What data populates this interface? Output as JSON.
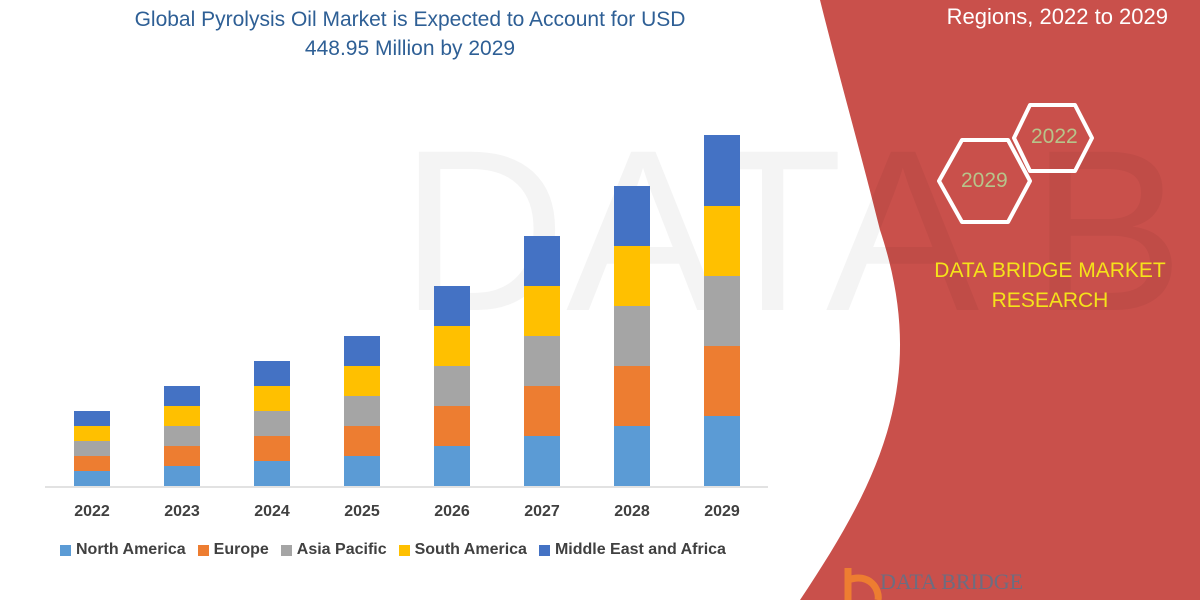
{
  "title": "Global Pyrolysis Oil Market is Expected to Account for USD 448.95 Million by 2029",
  "title_line1": "Global Pyrolysis Oil Market is Expected to Account for USD",
  "title_line2": "448.95 Million by 2029",
  "right_panel": {
    "subtitle": "Regions, 2022 to 2029",
    "hex_1": "2022",
    "hex_2": "2029",
    "brand_line1": "DATA BRIDGE MARKET",
    "brand_line2": "RESEARCH",
    "logo_text": "DATA BRIDGE",
    "panel_color": "#c9504b",
    "brand_color": "#f5e21a"
  },
  "chart_data": {
    "type": "bar",
    "stacked": true,
    "categories": [
      "2022",
      "2023",
      "2024",
      "2025",
      "2026",
      "2027",
      "2028",
      "2029"
    ],
    "series": [
      {
        "name": "North America",
        "color": "#5b9bd5",
        "values": [
          15,
          20,
          25,
          30,
          40,
          50,
          60,
          70
        ]
      },
      {
        "name": "Europe",
        "color": "#ed7d31",
        "values": [
          15,
          20,
          25,
          30,
          40,
          50,
          60,
          70
        ]
      },
      {
        "name": "Asia Pacific",
        "color": "#a5a5a5",
        "values": [
          15,
          20,
          25,
          30,
          40,
          50,
          60,
          70
        ]
      },
      {
        "name": "South America",
        "color": "#ffc000",
        "values": [
          15,
          20,
          25,
          30,
          40,
          50,
          60,
          70
        ]
      },
      {
        "name": "Middle East and Africa",
        "color": "#4472c4",
        "values": [
          15,
          20,
          25,
          30,
          40,
          50,
          60,
          71
        ]
      }
    ],
    "yaxis_visible": false,
    "grid": false,
    "legend_position": "bottom"
  }
}
